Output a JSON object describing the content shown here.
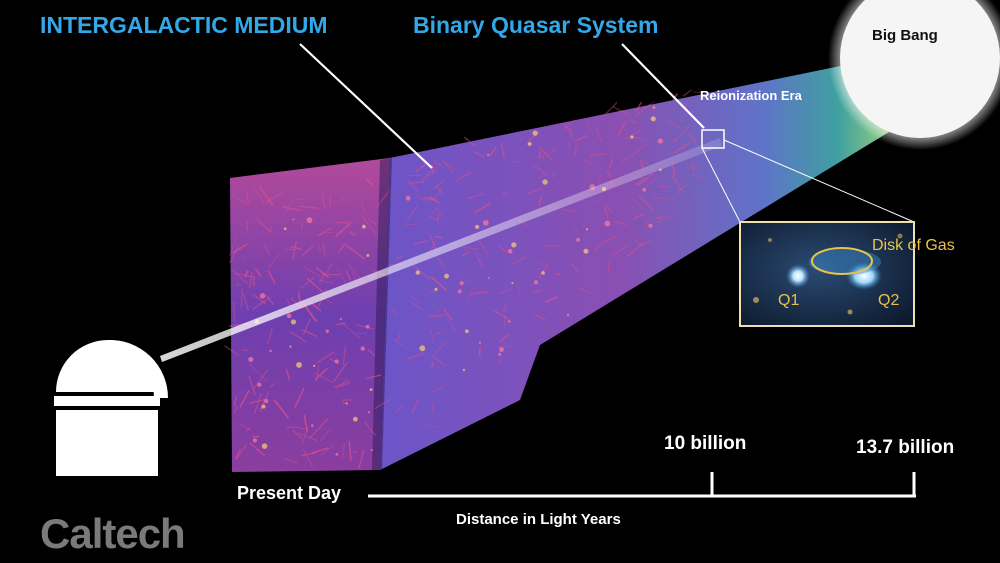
{
  "labels": {
    "intergalactic_medium": "INTERGALACTIC MEDIUM",
    "binary_quasar_system": "Binary Quasar System",
    "big_bang": "Big Bang",
    "reionization_era": "Reionization Era",
    "disk_of_gas": "Disk of Gas",
    "q1": "Q1",
    "q2": "Q2"
  },
  "timeline": {
    "start_label": "Present Day",
    "tick_1": "10 billion",
    "tick_2": "13.7 billion",
    "axis_title": "Distance in Light Years"
  },
  "logo": "Caltech",
  "colors": {
    "title_blue": "#33a8e8",
    "inset_gold": "#e9c44a",
    "web_pink": "#e0508a",
    "web_blue": "#5a4fc8",
    "logo_grey": "#7a7a7a"
  }
}
